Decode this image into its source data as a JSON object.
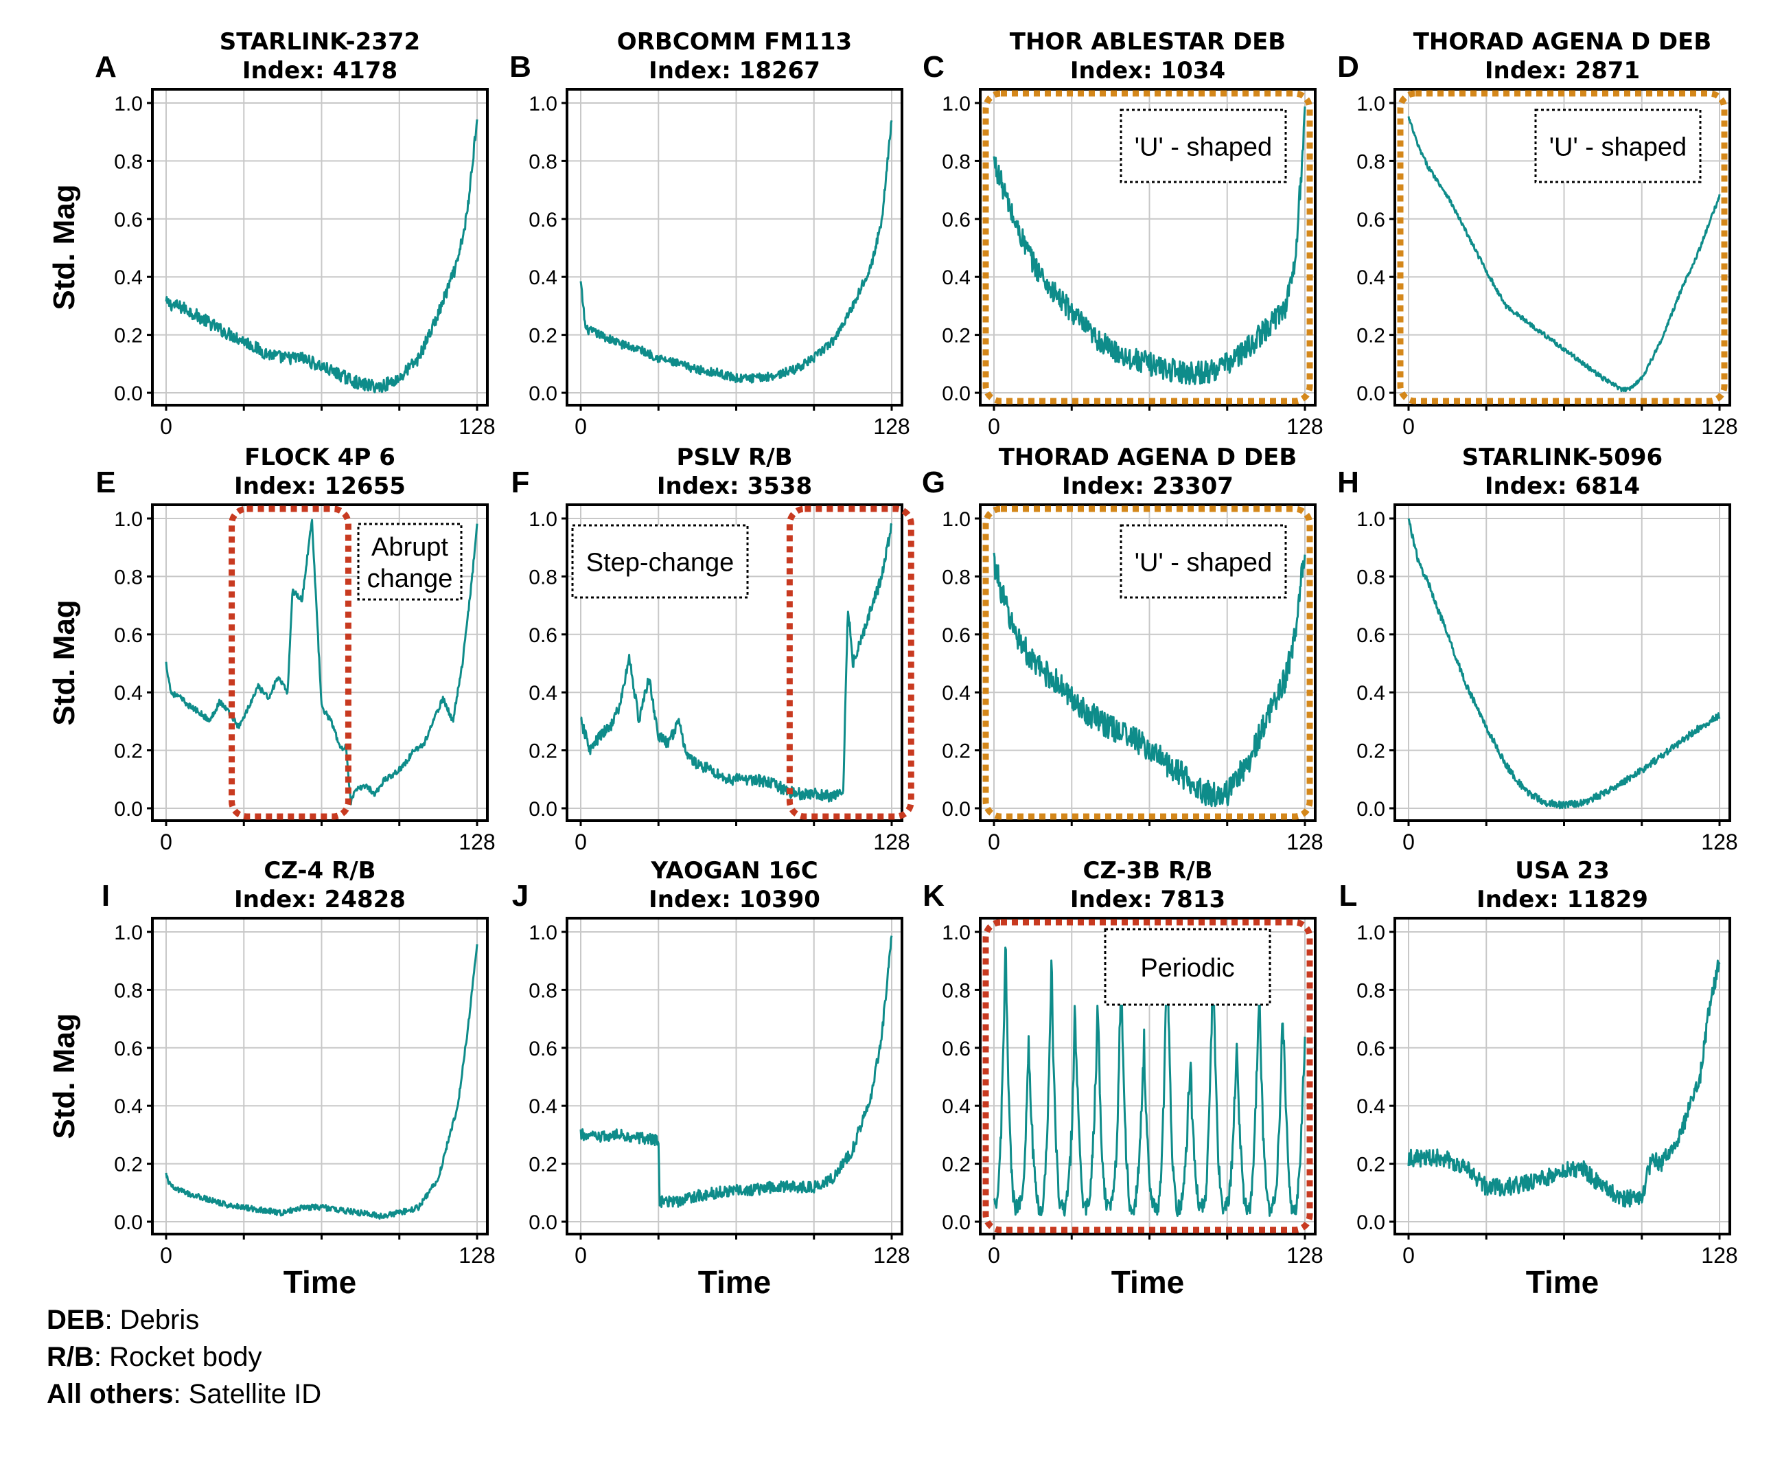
{
  "figure": {
    "ylabel": "Std. Mag",
    "xlabel": "Time",
    "yticks": [
      "0.0",
      "0.2",
      "0.4",
      "0.6",
      "0.8",
      "1.0"
    ],
    "xticks": [
      "0",
      "128"
    ],
    "line_color": "#0e8c8a"
  },
  "legend": [
    {
      "key": "DEB",
      "value": ": Debris"
    },
    {
      "key": "R/B",
      "value": ": Rocket body"
    },
    {
      "key": "All others",
      "value": ": Satellite ID"
    }
  ],
  "chart_data": [
    {
      "type": "line",
      "letter": "A",
      "title": "STARLINK-2372",
      "subtitle": "Index: 4178",
      "x": [
        0,
        8,
        16,
        24,
        32,
        40,
        48,
        56,
        64,
        72,
        80,
        88,
        96,
        104,
        112,
        120,
        124,
        128
      ],
      "values": [
        0.31,
        0.29,
        0.25,
        0.21,
        0.18,
        0.14,
        0.12,
        0.12,
        0.09,
        0.06,
        0.03,
        0.02,
        0.05,
        0.12,
        0.27,
        0.45,
        0.62,
        0.95
      ],
      "noise": 0.022,
      "ylim": [
        0,
        1
      ]
    },
    {
      "type": "line",
      "letter": "B",
      "title": "ORBCOMM FM113",
      "subtitle": "Index: 18267",
      "x": [
        0,
        2,
        8,
        16,
        24,
        32,
        40,
        48,
        56,
        64,
        72,
        80,
        88,
        96,
        104,
        112,
        120,
        124,
        128
      ],
      "values": [
        0.38,
        0.22,
        0.2,
        0.17,
        0.15,
        0.12,
        0.1,
        0.08,
        0.07,
        0.05,
        0.05,
        0.06,
        0.08,
        0.12,
        0.18,
        0.3,
        0.45,
        0.6,
        0.95
      ],
      "noise": 0.015,
      "ylim": [
        0,
        1
      ]
    },
    {
      "type": "line",
      "letter": "C",
      "title": "THOR ABLESTAR DEB",
      "subtitle": "Index: 1034",
      "x": [
        0,
        4,
        8,
        16,
        24,
        32,
        40,
        48,
        56,
        64,
        72,
        80,
        88,
        96,
        104,
        112,
        120,
        124,
        128
      ],
      "values": [
        0.8,
        0.7,
        0.6,
        0.45,
        0.35,
        0.28,
        0.2,
        0.15,
        0.12,
        0.1,
        0.08,
        0.07,
        0.07,
        0.1,
        0.15,
        0.22,
        0.3,
        0.45,
        0.95
      ],
      "noise": 0.04,
      "ylim": [
        0,
        1
      ],
      "highlight": "orange",
      "annotation": "'U' - shaped"
    },
    {
      "type": "line",
      "letter": "D",
      "title": "THORAD AGENA D DEB",
      "subtitle": "Index: 2871",
      "x": [
        0,
        4,
        8,
        16,
        24,
        32,
        40,
        48,
        56,
        64,
        72,
        80,
        88,
        90,
        96,
        104,
        112,
        120,
        128
      ],
      "values": [
        0.95,
        0.85,
        0.78,
        0.68,
        0.55,
        0.42,
        0.3,
        0.25,
        0.2,
        0.15,
        0.1,
        0.05,
        0.01,
        0.01,
        0.05,
        0.18,
        0.35,
        0.5,
        0.68
      ],
      "noise": 0.008,
      "ylim": [
        0,
        1
      ],
      "highlight": "orange",
      "annotation": "'U' - shaped"
    },
    {
      "type": "line",
      "letter": "E",
      "title": "FLOCK 4P 6",
      "subtitle": "Index: 12655",
      "x": [
        0,
        2,
        6,
        10,
        14,
        18,
        22,
        26,
        30,
        34,
        38,
        42,
        46,
        50,
        52,
        56,
        60,
        64,
        68,
        72,
        74,
        76,
        78,
        82,
        86,
        90,
        94,
        98,
        102,
        106,
        110,
        114,
        118,
        122,
        126,
        128
      ],
      "values": [
        0.5,
        0.4,
        0.38,
        0.35,
        0.33,
        0.3,
        0.37,
        0.33,
        0.28,
        0.35,
        0.42,
        0.38,
        0.45,
        0.4,
        0.75,
        0.72,
        1.0,
        0.35,
        0.3,
        0.2,
        0.22,
        0.02,
        0.06,
        0.08,
        0.05,
        0.1,
        0.12,
        0.15,
        0.2,
        0.22,
        0.3,
        0.38,
        0.3,
        0.5,
        0.8,
        0.98
      ],
      "noise": 0.01,
      "ylim": [
        0,
        1
      ],
      "highlight": "red",
      "annotation": "Abrupt change"
    },
    {
      "type": "line",
      "letter": "F",
      "title": "PSLV R/B",
      "subtitle": "Index: 3538",
      "x": [
        0,
        4,
        8,
        12,
        16,
        20,
        24,
        28,
        32,
        36,
        40,
        44,
        48,
        52,
        56,
        60,
        64,
        72,
        80,
        88,
        96,
        104,
        108,
        110,
        112,
        116,
        120,
        124,
        128
      ],
      "values": [
        0.3,
        0.2,
        0.25,
        0.28,
        0.35,
        0.52,
        0.3,
        0.45,
        0.25,
        0.22,
        0.3,
        0.18,
        0.15,
        0.14,
        0.12,
        0.1,
        0.1,
        0.1,
        0.08,
        0.05,
        0.05,
        0.04,
        0.05,
        0.7,
        0.5,
        0.6,
        0.7,
        0.8,
        0.98
      ],
      "noise": 0.02,
      "ylim": [
        0,
        1
      ],
      "highlight": "red",
      "annotation": "Step-change"
    },
    {
      "type": "line",
      "letter": "G",
      "title": "THORAD AGENA D DEB",
      "subtitle": "Index: 23307",
      "x": [
        0,
        4,
        8,
        16,
        24,
        32,
        40,
        48,
        56,
        64,
        72,
        80,
        88,
        96,
        104,
        112,
        120,
        124,
        128
      ],
      "values": [
        0.85,
        0.72,
        0.62,
        0.5,
        0.45,
        0.38,
        0.32,
        0.28,
        0.25,
        0.2,
        0.15,
        0.1,
        0.05,
        0.05,
        0.15,
        0.3,
        0.45,
        0.6,
        0.9
      ],
      "noise": 0.045,
      "ylim": [
        0,
        1
      ],
      "highlight": "orange",
      "annotation": "'U' - shaped"
    },
    {
      "type": "line",
      "letter": "H",
      "title": "STARLINK-5096",
      "subtitle": "Index: 6814",
      "x": [
        0,
        4,
        8,
        16,
        24,
        32,
        40,
        48,
        56,
        64,
        72,
        80,
        88,
        96,
        104,
        112,
        120,
        128
      ],
      "values": [
        1.0,
        0.85,
        0.78,
        0.6,
        0.42,
        0.28,
        0.15,
        0.06,
        0.02,
        0.01,
        0.02,
        0.05,
        0.09,
        0.13,
        0.18,
        0.23,
        0.28,
        0.32
      ],
      "noise": 0.012,
      "ylim": [
        0,
        1
      ]
    },
    {
      "type": "line",
      "letter": "I",
      "title": "CZ-4 R/B",
      "subtitle": "Index: 24828",
      "x": [
        0,
        2,
        8,
        16,
        24,
        32,
        40,
        48,
        56,
        64,
        72,
        80,
        88,
        96,
        104,
        112,
        120,
        124,
        128
      ],
      "values": [
        0.16,
        0.12,
        0.1,
        0.08,
        0.06,
        0.05,
        0.04,
        0.03,
        0.05,
        0.05,
        0.04,
        0.03,
        0.02,
        0.03,
        0.05,
        0.15,
        0.4,
        0.65,
        0.95
      ],
      "noise": 0.01,
      "ylim": [
        0,
        1
      ]
    },
    {
      "type": "line",
      "letter": "J",
      "title": "YAOGAN 16C",
      "subtitle": "Index: 10390",
      "x": [
        0,
        8,
        16,
        24,
        32,
        32.5,
        40,
        48,
        56,
        64,
        72,
        80,
        88,
        96,
        104,
        112,
        120,
        124,
        128
      ],
      "values": [
        0.3,
        0.29,
        0.3,
        0.29,
        0.28,
        0.07,
        0.07,
        0.09,
        0.1,
        0.11,
        0.11,
        0.12,
        0.12,
        0.12,
        0.15,
        0.25,
        0.45,
        0.65,
        0.98
      ],
      "noise": 0.02,
      "ylim": [
        0,
        1
      ]
    },
    {
      "type": "line",
      "letter": "K",
      "title": "CZ-3B R/B",
      "subtitle": "Index: 7813",
      "x": [],
      "values": [],
      "periodic": true,
      "noise": 0.03,
      "ylim": [
        0,
        1
      ],
      "highlight": "red",
      "annotation": "Periodic"
    },
    {
      "type": "line",
      "letter": "L",
      "title": "USA 23",
      "subtitle": "Index: 11829",
      "x": [
        0,
        8,
        16,
        24,
        32,
        40,
        48,
        56,
        64,
        72,
        80,
        88,
        96,
        100,
        104,
        112,
        120,
        124,
        128
      ],
      "values": [
        0.22,
        0.22,
        0.22,
        0.18,
        0.12,
        0.12,
        0.13,
        0.15,
        0.18,
        0.18,
        0.12,
        0.08,
        0.08,
        0.22,
        0.2,
        0.3,
        0.5,
        0.75,
        0.9
      ],
      "noise": 0.03,
      "ylim": [
        0,
        1
      ]
    }
  ]
}
